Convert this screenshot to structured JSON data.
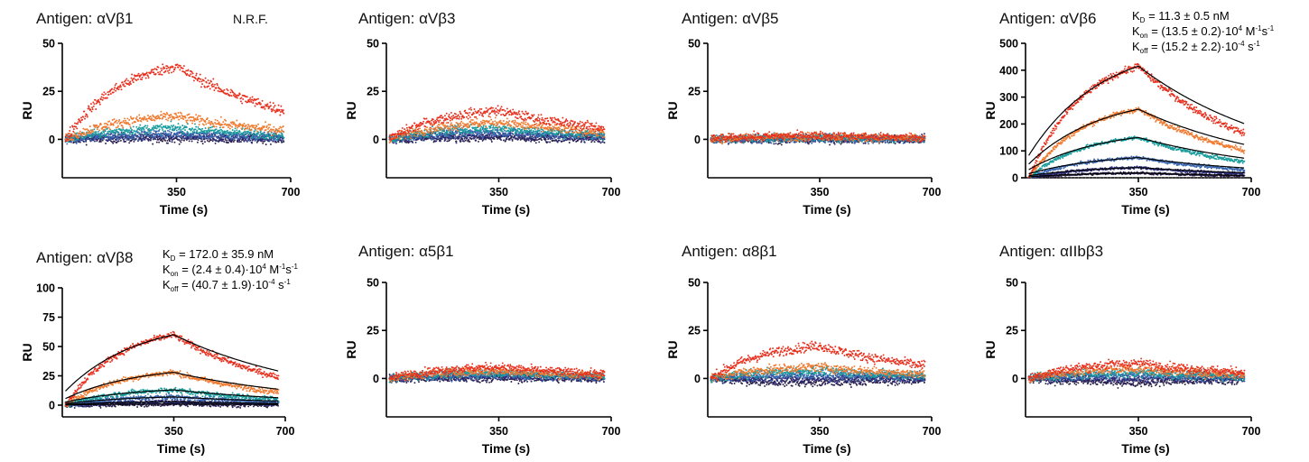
{
  "colors": {
    "series": [
      "#e8301e",
      "#f07a30",
      "#1a9d9d",
      "#3a67b0",
      "#2e2f7a",
      "#2a1f4a"
    ],
    "fit": "#000000",
    "axis": "#000000"
  },
  "chart_data": [
    {
      "type": "scatter",
      "title": "Antigen: αVβ1",
      "note": "N.R.F.",
      "xlabel": "Time (s)",
      "ylabel": "RU",
      "xticks": [
        "350",
        "700"
      ],
      "yticks": [
        "0",
        "25",
        "50"
      ],
      "xlim": [
        0,
        700
      ],
      "ylim": [
        -20,
        50
      ],
      "peak_x": 350,
      "peaks": [
        38,
        12,
        6,
        3,
        1.5,
        0.5
      ],
      "noise": 2.2,
      "fit": false
    },
    {
      "type": "scatter",
      "title": "Antigen: αVβ3",
      "xlabel": "Time (s)",
      "ylabel": "RU",
      "xticks": [
        "350",
        "700"
      ],
      "yticks": [
        "0",
        "25",
        "50"
      ],
      "xlim": [
        0,
        700
      ],
      "ylim": [
        -20,
        50
      ],
      "peak_x": 350,
      "peaks": [
        15,
        9,
        6,
        4,
        2,
        1
      ],
      "noise": 2.2,
      "fit": false
    },
    {
      "type": "scatter",
      "title": "Antigen: αVβ5",
      "xlabel": "Time (s)",
      "ylabel": "RU",
      "xticks": [
        "350",
        "700"
      ],
      "yticks": [
        "0",
        "25",
        "50"
      ],
      "xlim": [
        0,
        700
      ],
      "ylim": [
        -20,
        50
      ],
      "peak_x": 350,
      "peaks": [
        2,
        1.5,
        1,
        0.5,
        0.3,
        0
      ],
      "noise": 2.0,
      "fit": false
    },
    {
      "type": "scatter",
      "title": "Antigen: αVβ6",
      "xlabel": "Time (s)",
      "ylabel": "RU",
      "xticks": [
        "350",
        "700"
      ],
      "yticks": [
        "0",
        "100",
        "200",
        "300",
        "400",
        "500"
      ],
      "xlim": [
        0,
        700
      ],
      "ylim": [
        0,
        500
      ],
      "peak_x": 350,
      "peaks": [
        415,
        255,
        150,
        75,
        38,
        18
      ],
      "noise": 4,
      "fit": true,
      "kinetics": {
        "KD": "= 11.3 ± 0.5 nM",
        "Kon": "= (13.5 ± 0.2)·10",
        "Kon_exp": "4",
        "Kon_unit": " M",
        "Kon_unit_exp": "-1",
        "Kon_unit2": "s",
        "Kon_unit2_exp": "-1",
        "Koff": "= (15.2 ± 2.2)·10",
        "Koff_exp": "-4",
        "Koff_unit": " s",
        "Koff_unit_exp": "-1"
      }
    },
    {
      "type": "scatter",
      "title": "Antigen: αVβ8",
      "xlabel": "Time (s)",
      "ylabel": "RU",
      "xticks": [
        "350",
        "700"
      ],
      "yticks": [
        "0",
        "25",
        "50",
        "75",
        "100"
      ],
      "xlim": [
        0,
        700
      ],
      "ylim": [
        -10,
        100
      ],
      "peak_x": 350,
      "peaks": [
        60,
        28,
        13,
        7,
        3,
        1
      ],
      "noise": 2.0,
      "fit": true,
      "kinetics": {
        "KD": "= 172.0 ± 35.9 nM",
        "Kon": "= (2.4 ± 0.4)·10",
        "Kon_exp": "4",
        "Kon_unit": " M",
        "Kon_unit_exp": "-1",
        "Kon_unit2": "s",
        "Kon_unit2_exp": "-1",
        "Koff": "= (40.7 ± 1.9)·10",
        "Koff_exp": "-4",
        "Koff_unit": " s",
        "Koff_unit_exp": "-1"
      }
    },
    {
      "type": "scatter",
      "title": "Antigen: α5β1",
      "xlabel": "Time (s)",
      "ylabel": "RU",
      "xticks": [
        "350",
        "700"
      ],
      "yticks": [
        "0",
        "25",
        "50"
      ],
      "xlim": [
        0,
        700
      ],
      "ylim": [
        -20,
        50
      ],
      "peak_x": 350,
      "peaks": [
        6,
        4,
        3,
        2,
        1,
        0
      ],
      "noise": 2.0,
      "fit": false
    },
    {
      "type": "scatter",
      "title": "Antigen: α8β1",
      "xlabel": "Time (s)",
      "ylabel": "RU",
      "xticks": [
        "350",
        "700"
      ],
      "yticks": [
        "0",
        "25",
        "50"
      ],
      "xlim": [
        0,
        700
      ],
      "ylim": [
        -20,
        50
      ],
      "peak_x": 350,
      "peaks": [
        17,
        6,
        4,
        2,
        0,
        -2
      ],
      "noise": 2.2,
      "fit": false
    },
    {
      "type": "scatter",
      "title": "Antigen: αIIbβ3",
      "xlabel": "Time (s)",
      "ylabel": "RU",
      "xticks": [
        "350",
        "700"
      ],
      "yticks": [
        "0",
        "25",
        "50"
      ],
      "xlim": [
        0,
        700
      ],
      "ylim": [
        -20,
        50
      ],
      "peak_x": 350,
      "peaks": [
        8,
        5,
        3,
        2,
        0,
        -2
      ],
      "noise": 2.2,
      "fit": false
    }
  ]
}
